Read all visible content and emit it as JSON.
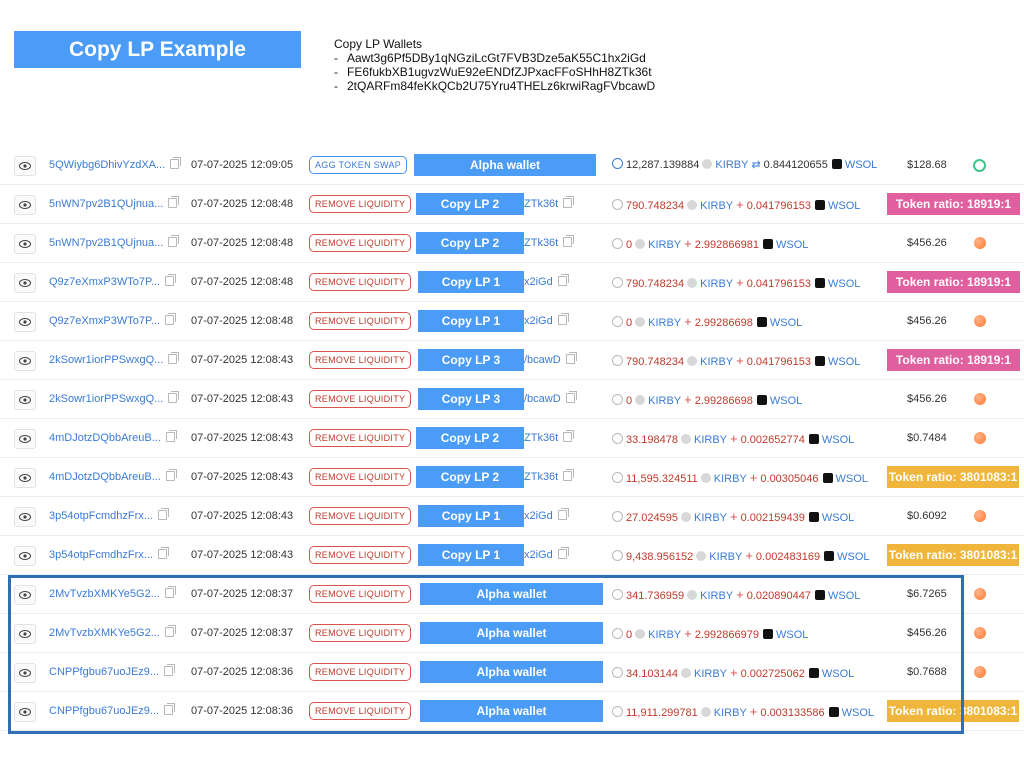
{
  "header": {
    "title": "Copy LP Example",
    "wallets_heading": "Copy LP Wallets",
    "wallets": [
      "Aawt3g6Pf5DBy1qNGziLcGt7FVB3Dze5aK55C1hx2iGd",
      "FE6fukbXB1ugvzWuE92eENDfZJPxacFFoSHhH8ZTk36t",
      "2tQARFm84feKkQCb2U75Yru4THELz6krwiRagFVbcawD"
    ]
  },
  "rows": [
    {
      "sig": "5QWiybg6DhivYzdXA...",
      "time": "07-07-2025 12:09:05",
      "action": "AGG TOKEN SWAP",
      "tail": "",
      "wallet": "Alpha wallet",
      "amt1": "12,287.139884",
      "sym1": "KIRBY",
      "sep": "⇄",
      "amt2": "0.844120655",
      "sym2": "WSOL",
      "usd": "$128.68",
      "ratio": ""
    },
    {
      "sig": "5nWN7pv2B1QUjnua...",
      "time": "07-07-2025 12:08:48",
      "action": "REMOVE LIQUIDITY",
      "tail": "ZTk36t",
      "wallet": "Copy LP 2",
      "amt1": "790.748234",
      "sym1": "KIRBY",
      "sep": "+",
      "amt2": "0.041796153",
      "sym2": "WSOL",
      "usd": "",
      "ratio": "Token ratio:  18919:1"
    },
    {
      "sig": "5nWN7pv2B1QUjnua...",
      "time": "07-07-2025 12:08:48",
      "action": "REMOVE LIQUIDITY",
      "tail": "ZTk36t",
      "wallet": "Copy LP 2",
      "amt1": "0",
      "sym1": "KIRBY",
      "sep": "+",
      "amt2": "2.992866981",
      "sym2": "WSOL",
      "usd": "$456.26",
      "ratio": ""
    },
    {
      "sig": "Q9z7eXmxP3WTo7P...",
      "time": "07-07-2025 12:08:48",
      "action": "REMOVE LIQUIDITY",
      "tail": "x2iGd",
      "wallet": "Copy LP 1",
      "amt1": "790.748234",
      "sym1": "KIRBY",
      "sep": "+",
      "amt2": "0.041796153",
      "sym2": "WSOL",
      "usd": "",
      "ratio": "Token ratio:  18919:1"
    },
    {
      "sig": "Q9z7eXmxP3WTo7P...",
      "time": "07-07-2025 12:08:48",
      "action": "REMOVE LIQUIDITY",
      "tail": "x2iGd",
      "wallet": "Copy LP 1",
      "amt1": "0",
      "sym1": "KIRBY",
      "sep": "+",
      "amt2": "2.99286698",
      "sym2": "WSOL",
      "usd": "$456.26",
      "ratio": ""
    },
    {
      "sig": "2kSowr1iorPPSwxgQ...",
      "time": "07-07-2025 12:08:43",
      "action": "REMOVE LIQUIDITY",
      "tail": "/bcawD",
      "wallet": "Copy LP 3",
      "amt1": "790.748234",
      "sym1": "KIRBY",
      "sep": "+",
      "amt2": "0.041796153",
      "sym2": "WSOL",
      "usd": "",
      "ratio": "Token ratio:  18919:1"
    },
    {
      "sig": "2kSowr1iorPPSwxgQ...",
      "time": "07-07-2025 12:08:43",
      "action": "REMOVE LIQUIDITY",
      "tail": "/bcawD",
      "wallet": "Copy LP 3",
      "amt1": "0",
      "sym1": "KIRBY",
      "sep": "+",
      "amt2": "2.99286698",
      "sym2": "WSOL",
      "usd": "$456.26",
      "ratio": ""
    },
    {
      "sig": "4mDJotzDQbbAreuB...",
      "time": "07-07-2025 12:08:43",
      "action": "REMOVE LIQUIDITY",
      "tail": "ZTk36t",
      "wallet": "Copy LP 2",
      "amt1": "33.198478",
      "sym1": "KIRBY",
      "sep": "+",
      "amt2": "0.002652774",
      "sym2": "WSOL",
      "usd": "$0.7484",
      "ratio": ""
    },
    {
      "sig": "4mDJotzDQbbAreuB...",
      "time": "07-07-2025 12:08:43",
      "action": "REMOVE LIQUIDITY",
      "tail": "ZTk36t",
      "wallet": "Copy LP 2",
      "amt1": "11,595.324511",
      "sym1": "KIRBY",
      "sep": "+",
      "amt2": "0.00305046",
      "sym2": "WSOL",
      "usd": "",
      "ratio": "Token ratio:  3801083:1"
    },
    {
      "sig": "3p54otpFcmdhzFrx...",
      "time": "07-07-2025 12:08:43",
      "action": "REMOVE LIQUIDITY",
      "tail": "x2iGd",
      "wallet": "Copy LP 1",
      "amt1": "27.024595",
      "sym1": "KIRBY",
      "sep": "+",
      "amt2": "0.002159439",
      "sym2": "WSOL",
      "usd": "$0.6092",
      "ratio": ""
    },
    {
      "sig": "3p54otpFcmdhzFrx...",
      "time": "07-07-2025 12:08:43",
      "action": "REMOVE LIQUIDITY",
      "tail": "x2iGd",
      "wallet": "Copy LP 1",
      "amt1": "9,438.956152",
      "sym1": "KIRBY",
      "sep": "+",
      "amt2": "0.002483169",
      "sym2": "WSOL",
      "usd": "",
      "ratio": "Token ratio:  3801083:1"
    },
    {
      "sig": "2MvTvzbXMKYe5G2...",
      "time": "07-07-2025 12:08:37",
      "action": "REMOVE LIQUIDITY",
      "tail": "",
      "wallet": "Alpha wallet",
      "amt1": "341.736959",
      "sym1": "KIRBY",
      "sep": "+",
      "amt2": "0.020890447",
      "sym2": "WSOL",
      "usd": "$6.7265",
      "ratio": ""
    },
    {
      "sig": "2MvTvzbXMKYe5G2...",
      "time": "07-07-2025 12:08:37",
      "action": "REMOVE LIQUIDITY",
      "tail": "",
      "wallet": "Alpha wallet",
      "amt1": "0",
      "sym1": "KIRBY",
      "sep": "+",
      "amt2": "2.992866979",
      "sym2": "WSOL",
      "usd": "$456.26",
      "ratio": ""
    },
    {
      "sig": "CNPPfgbu67uoJEz9...",
      "time": "07-07-2025 12:08:36",
      "action": "REMOVE LIQUIDITY",
      "tail": "",
      "wallet": "Alpha wallet",
      "amt1": "34.103144",
      "sym1": "KIRBY",
      "sep": "+",
      "amt2": "0.002725062",
      "sym2": "WSOL",
      "usd": "$0.7688",
      "ratio": ""
    },
    {
      "sig": "CNPPfgbu67uoJEz9...",
      "time": "07-07-2025 12:08:36",
      "action": "REMOVE LIQUIDITY",
      "tail": "",
      "wallet": "Alpha wallet",
      "amt1": "11,911.299781",
      "sym1": "KIRBY",
      "sep": "+",
      "amt2": "0.003133586",
      "sym2": "WSOL",
      "usd": "",
      "ratio": "Token ratio:  3801083:1"
    }
  ],
  "colors": {
    "label_blue": "#4a9cf7",
    "ratio_pink": "#e0609f",
    "ratio_gold": "#f0b63c",
    "highlight_border": "#2f6fb6"
  },
  "icons": {
    "row_view": "eye-icon",
    "copy": "copy-icon",
    "token": "kirby-token-icon",
    "wsol": "wsol-token-icon",
    "dex": "dex-icon"
  }
}
